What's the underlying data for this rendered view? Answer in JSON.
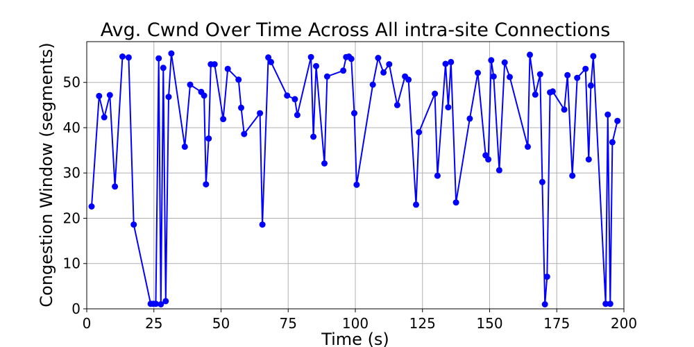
{
  "chart_data": {
    "type": "line",
    "title": "Avg. Cwnd Over Time Across All intra-site Connections",
    "xlabel": "Time (s)",
    "ylabel": "Congestion Window (segments)",
    "xlim": [
      0,
      200
    ],
    "ylim": [
      0,
      59
    ],
    "xticks": [
      0,
      25,
      50,
      75,
      100,
      125,
      150,
      175,
      200
    ],
    "yticks": [
      0,
      10,
      20,
      30,
      40,
      50
    ],
    "grid": true,
    "colors": {
      "series": "#0000ff"
    },
    "series": [
      {
        "marker": "circle",
        "x": [
          1.8,
          4.6,
          6.5,
          8.6,
          10.5,
          13.3,
          15.6,
          17.5,
          23.8,
          24.8,
          25.7,
          26.8,
          27.6,
          28.5,
          29.4,
          30.5,
          31.5,
          36.5,
          38.5,
          42.6,
          43.7,
          44.4,
          45.4,
          46.2,
          47.6,
          50.8,
          52.5,
          56.5,
          57.5,
          58.6,
          64.5,
          65.4,
          67.6,
          68.6,
          74.6,
          77.5,
          78.4,
          83.5,
          84.4,
          85.4,
          88.5,
          89.5,
          95.5,
          96.6,
          97.6,
          98.5,
          99.6,
          100.5,
          106.5,
          108.5,
          110.5,
          112.6,
          115.6,
          118.5,
          119.8,
          122.6,
          123.7,
          129.6,
          130.6,
          133.6,
          134.6,
          135.6,
          137.5,
          142.6,
          145.6,
          148.5,
          149.5,
          150.6,
          151.5,
          153.6,
          155.6,
          157.5,
          164.2,
          165.0,
          167.0,
          168.8,
          169.6,
          170.6,
          171.4,
          172.5,
          173.5,
          177.8,
          179.0,
          180.8,
          182.6,
          185.7,
          186.9,
          187.7,
          188.6,
          193.2,
          194.0,
          194.9,
          195.7,
          197.6
        ],
        "y": [
          22.6,
          47.0,
          42.3,
          47.2,
          27.0,
          55.7,
          55.5,
          18.6,
          1.1,
          1.1,
          1.1,
          55.3,
          1.0,
          53.2,
          1.7,
          46.8,
          56.4,
          35.8,
          49.5,
          47.9,
          47.1,
          27.5,
          37.6,
          54.0,
          54.0,
          41.9,
          53.0,
          50.6,
          44.4,
          38.6,
          43.2,
          18.6,
          55.5,
          54.5,
          47.1,
          46.3,
          42.8,
          55.6,
          38.0,
          53.6,
          32.1,
          51.3,
          52.6,
          55.6,
          55.7,
          55.2,
          43.2,
          27.4,
          49.5,
          55.4,
          52.2,
          54.0,
          45.0,
          51.3,
          50.6,
          23.0,
          39.0,
          47.5,
          29.4,
          54.1,
          44.5,
          54.5,
          23.5,
          42.0,
          52.1,
          33.9,
          33.0,
          54.9,
          51.3,
          30.6,
          54.4,
          51.2,
          35.8,
          56.1,
          47.3,
          51.8,
          28.0,
          1.0,
          7.1,
          47.8,
          48.0,
          44.0,
          51.6,
          29.4,
          51.0,
          53.0,
          33.0,
          49.3,
          55.8,
          1.1,
          42.9,
          1.1,
          36.8,
          41.5
        ]
      }
    ]
  }
}
